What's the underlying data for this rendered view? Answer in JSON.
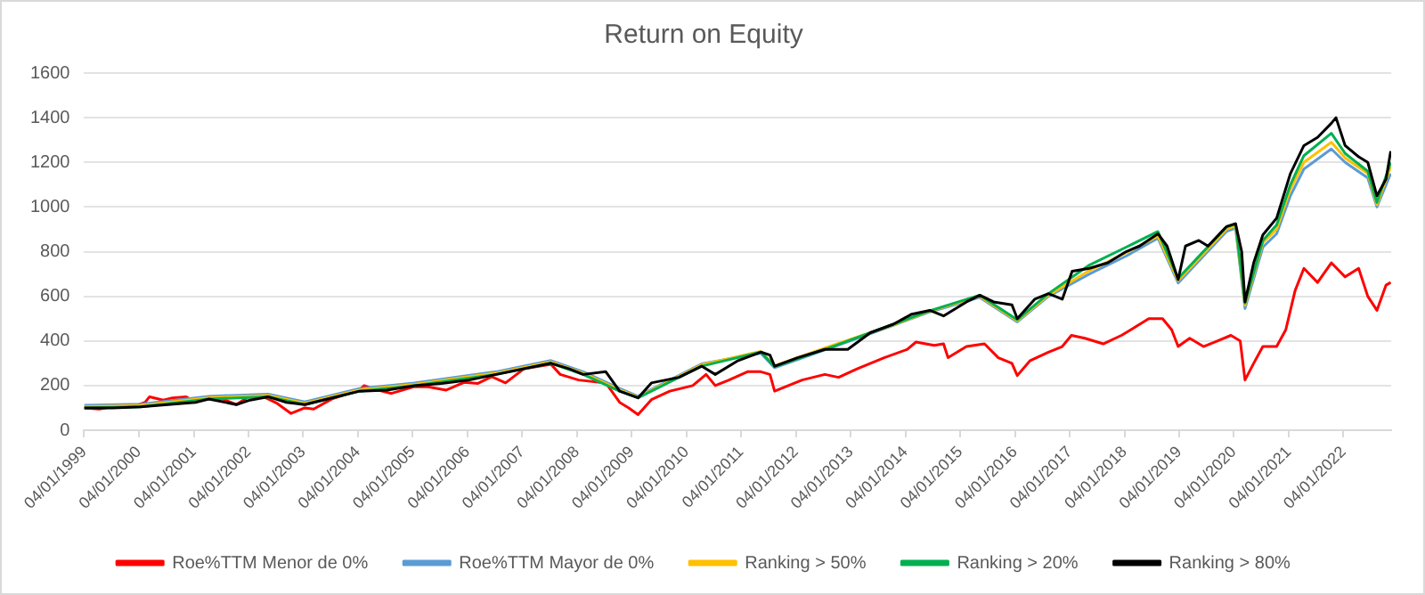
{
  "chart_data": {
    "type": "line",
    "title": "Return on Equity",
    "xlim": [
      "1999-01-04",
      "2022-11-18"
    ],
    "xticks": [
      {
        "value": "1999-01-04",
        "label": "04/01/1999"
      },
      {
        "value": "2000-01-04",
        "label": "04/01/2000"
      },
      {
        "value": "2001-01-04",
        "label": "04/01/2001"
      },
      {
        "value": "2002-01-04",
        "label": "04/01/2002"
      },
      {
        "value": "2003-01-04",
        "label": "04/01/2003"
      },
      {
        "value": "2004-01-04",
        "label": "04/01/2004"
      },
      {
        "value": "2005-01-04",
        "label": "04/01/2005"
      },
      {
        "value": "2006-01-04",
        "label": "04/01/2006"
      },
      {
        "value": "2007-01-04",
        "label": "04/01/2007"
      },
      {
        "value": "2008-01-04",
        "label": "04/01/2008"
      },
      {
        "value": "2009-01-04",
        "label": "04/01/2009"
      },
      {
        "value": "2010-01-04",
        "label": "04/01/2010"
      },
      {
        "value": "2011-01-04",
        "label": "04/01/2011"
      },
      {
        "value": "2012-01-04",
        "label": "04/01/2012"
      },
      {
        "value": "2013-01-04",
        "label": "04/01/2013"
      },
      {
        "value": "2014-01-04",
        "label": "04/01/2014"
      },
      {
        "value": "2015-01-04",
        "label": "04/01/2015"
      },
      {
        "value": "2016-01-04",
        "label": "04/01/2016"
      },
      {
        "value": "2017-01-04",
        "label": "04/01/2017"
      },
      {
        "value": "2018-01-04",
        "label": "04/01/2018"
      },
      {
        "value": "2019-01-04",
        "label": "04/01/2019"
      },
      {
        "value": "2020-01-04",
        "label": "04/01/2020"
      },
      {
        "value": "2021-01-04",
        "label": "04/01/2021"
      },
      {
        "value": "2022-01-04",
        "label": "04/01/2022"
      }
    ],
    "ylim": [
      0,
      1600
    ],
    "yticks": [
      0,
      200,
      400,
      600,
      800,
      1000,
      1200,
      1400,
      1600
    ],
    "grid": "y",
    "legend": "bottom",
    "marker": "none",
    "line_style": "solid",
    "series": [
      {
        "name": "Roe%TTM Menor de 0%",
        "color": "#ff0000",
        "x": [
          "1999-01-04",
          "1999-04-15",
          "1999-08-15",
          "1999-12-15",
          "2000-02-15",
          "2000-03-15",
          "2000-06-15",
          "2000-08-15",
          "2000-11-15",
          "2001-01-15",
          "2001-04-15",
          "2001-07-15",
          "2001-10-15",
          "2002-01-15",
          "2002-04-15",
          "2002-07-15",
          "2002-10-15",
          "2003-01-15",
          "2003-03-15",
          "2003-07-15",
          "2004-01-15",
          "2004-02-15",
          "2004-04-15",
          "2004-08-15",
          "2005-01-15",
          "2005-04-15",
          "2005-08-15",
          "2005-12-15",
          "2006-03-15",
          "2006-06-15",
          "2006-09-15",
          "2007-01-15",
          "2007-07-15",
          "2007-09-15",
          "2008-01-15",
          "2008-07-15",
          "2008-10-15",
          "2008-12-15",
          "2009-02-15",
          "2009-05-15",
          "2009-09-15",
          "2010-02-15",
          "2010-05-15",
          "2010-07-15",
          "2010-10-15",
          "2011-02-15",
          "2011-05-15",
          "2011-07-15",
          "2011-08-15",
          "2011-11-15",
          "2012-02-15",
          "2012-07-15",
          "2012-10-15",
          "2013-02-15",
          "2013-08-15",
          "2014-01-15",
          "2014-03-15",
          "2014-07-15",
          "2014-09-15",
          "2014-10-15",
          "2015-02-15",
          "2015-06-15",
          "2015-09-15",
          "2015-12-15",
          "2016-01-20",
          "2016-04-15",
          "2016-08-15",
          "2016-11-15",
          "2017-01-15",
          "2017-04-15",
          "2017-08-15",
          "2017-12-15",
          "2018-02-15",
          "2018-06-15",
          "2018-09-15",
          "2018-11-15",
          "2018-12-28",
          "2019-03-15",
          "2019-06-15",
          "2019-09-15",
          "2019-12-15",
          "2020-02-15",
          "2020-03-18",
          "2020-05-15",
          "2020-07-15",
          "2020-10-15",
          "2020-12-15",
          "2021-02-15",
          "2021-04-15",
          "2021-07-15",
          "2021-10-15",
          "2022-01-15",
          "2022-04-15",
          "2022-06-15",
          "2022-08-15",
          "2022-10-15",
          "2022-11-15"
        ],
        "values": [
          100,
          95,
          110,
          110,
          125,
          150,
          135,
          145,
          150,
          125,
          150,
          140,
          115,
          155,
          150,
          120,
          75,
          100,
          95,
          140,
          180,
          200,
          185,
          165,
          195,
          195,
          180,
          215,
          210,
          240,
          212,
          275,
          295,
          250,
          225,
          212,
          125,
          100,
          70,
          137,
          175,
          200,
          250,
          200,
          225,
          262,
          262,
          250,
          175,
          200,
          225,
          250,
          237,
          275,
          325,
          362,
          395,
          380,
          387,
          325,
          375,
          387,
          325,
          300,
          245,
          312,
          350,
          375,
          425,
          412,
          387,
          425,
          450,
          500,
          500,
          450,
          375,
          412,
          375,
          400,
          425,
          400,
          225,
          300,
          375,
          375,
          450,
          625,
          725,
          662,
          750,
          687,
          725,
          600,
          537,
          650,
          662
        ]
      },
      {
        "name": "Roe%TTM Mayor de 0%",
        "color": "#5b9bd5",
        "x": [
          "1999-01-04",
          "2000-01-15",
          "2001-04-15",
          "2002-05-15",
          "2003-01-15",
          "2004-01-15",
          "2005-01-15",
          "2006-07-15",
          "2007-07-15",
          "2008-02-15",
          "2008-10-15",
          "2009-02-15",
          "2010-04-15",
          "2011-05-15",
          "2011-08-15",
          "2012-07-15",
          "2013-10-15",
          "2014-06-15",
          "2015-05-15",
          "2016-01-20",
          "2016-08-15",
          "2017-05-15",
          "2018-01-15",
          "2018-08-15",
          "2018-12-28",
          "2019-11-15",
          "2020-01-15",
          "2020-03-18",
          "2020-07-15",
          "2020-10-15",
          "2021-01-15",
          "2021-04-15",
          "2021-10-15",
          "2022-01-15",
          "2022-06-15",
          "2022-08-15",
          "2022-11-15"
        ],
        "values": [
          112,
          117,
          152,
          162,
          127,
          187,
          212,
          262,
          312,
          262,
          187,
          152,
          297,
          345,
          280,
          360,
          470,
          530,
          595,
          485,
          600,
          700,
          780,
          860,
          660,
          890,
          905,
          545,
          820,
          880,
          1050,
          1170,
          1260,
          1200,
          1130,
          1000,
          1150
        ]
      },
      {
        "name": "Ranking > 50%",
        "color": "#ffc000",
        "x": [
          "1999-01-04",
          "2000-01-15",
          "2001-04-15",
          "2002-05-15",
          "2003-01-15",
          "2004-01-15",
          "2005-01-15",
          "2006-07-15",
          "2007-07-15",
          "2008-02-15",
          "2008-10-15",
          "2009-02-15",
          "2010-04-15",
          "2011-05-15",
          "2011-08-15",
          "2012-07-15",
          "2013-10-15",
          "2014-06-15",
          "2015-05-15",
          "2016-01-20",
          "2016-08-15",
          "2017-05-15",
          "2018-01-15",
          "2018-08-15",
          "2018-12-28",
          "2019-11-15",
          "2020-01-15",
          "2020-03-18",
          "2020-07-15",
          "2020-10-15",
          "2021-01-15",
          "2021-04-15",
          "2021-10-15",
          "2022-01-15",
          "2022-06-15",
          "2022-08-15",
          "2022-11-15"
        ],
        "values": [
          106,
          111,
          146,
          156,
          121,
          181,
          206,
          256,
          306,
          256,
          181,
          148,
          293,
          353,
          289,
          368,
          472,
          533,
          600,
          490,
          605,
          715,
          795,
          870,
          670,
          900,
          915,
          560,
          840,
          900,
          1080,
          1200,
          1290,
          1220,
          1150,
          1010,
          1180
        ]
      },
      {
        "name": "Ranking > 20%",
        "color": "#00b050",
        "x": [
          "1999-01-04",
          "2000-01-15",
          "2001-04-15",
          "2002-05-15",
          "2003-01-15",
          "2004-01-15",
          "2005-01-15",
          "2006-07-15",
          "2007-07-15",
          "2008-02-15",
          "2008-10-15",
          "2009-02-15",
          "2010-04-15",
          "2011-05-15",
          "2011-08-15",
          "2012-07-15",
          "2013-10-15",
          "2014-06-15",
          "2015-05-15",
          "2016-01-20",
          "2016-08-15",
          "2017-05-15",
          "2018-01-15",
          "2018-08-15",
          "2018-12-28",
          "2019-11-15",
          "2020-01-15",
          "2020-03-18",
          "2020-07-15",
          "2020-10-15",
          "2021-01-15",
          "2021-04-15",
          "2021-10-15",
          "2022-01-15",
          "2022-06-15",
          "2022-08-15",
          "2022-11-15"
        ],
        "values": [
          100,
          105,
          140,
          150,
          115,
          175,
          200,
          250,
          300,
          250,
          175,
          145,
          287,
          350,
          285,
          362,
          475,
          535,
          605,
          495,
          612,
          740,
          820,
          890,
          680,
          910,
          925,
          570,
          850,
          920,
          1100,
          1230,
          1330,
          1240,
          1160,
          1020,
          1200
        ]
      },
      {
        "name": "Ranking > 80%",
        "color": "#000000",
        "x": [
          "1999-01-04",
          "1999-07-15",
          "2000-01-15",
          "2000-07-15",
          "2001-01-15",
          "2001-04-15",
          "2001-10-15",
          "2002-01-15",
          "2002-05-15",
          "2002-09-15",
          "2003-01-15",
          "2003-04-15",
          "2003-08-15",
          "2004-01-15",
          "2004-07-15",
          "2005-01-15",
          "2005-07-15",
          "2006-01-15",
          "2006-07-15",
          "2007-07-15",
          "2007-11-15",
          "2008-02-15",
          "2008-07-15",
          "2008-10-15",
          "2009-02-15",
          "2009-05-15",
          "2009-11-15",
          "2010-04-15",
          "2010-07-15",
          "2010-12-15",
          "2011-05-15",
          "2011-07-15",
          "2011-08-15",
          "2012-01-15",
          "2012-07-15",
          "2012-12-15",
          "2013-05-15",
          "2013-10-15",
          "2014-02-15",
          "2014-06-15",
          "2014-09-15",
          "2015-02-15",
          "2015-05-15",
          "2015-08-15",
          "2015-12-15",
          "2016-01-20",
          "2016-05-15",
          "2016-08-15",
          "2016-11-15",
          "2017-01-20",
          "2017-05-15",
          "2017-09-15",
          "2018-01-15",
          "2018-04-15",
          "2018-08-15",
          "2018-10-15",
          "2018-12-28",
          "2019-02-15",
          "2019-05-15",
          "2019-07-15",
          "2019-11-15",
          "2020-01-15",
          "2020-02-25",
          "2020-03-18",
          "2020-05-15",
          "2020-07-15",
          "2020-10-15",
          "2021-01-15",
          "2021-04-15",
          "2021-07-15",
          "2021-10-15",
          "2021-11-15",
          "2022-01-15",
          "2022-04-15",
          "2022-06-15",
          "2022-08-15",
          "2022-10-15",
          "2022-11-15"
        ],
        "values": [
          100,
          100,
          105,
          115,
          125,
          140,
          115,
          135,
          150,
          125,
          115,
          130,
          150,
          175,
          180,
          200,
          210,
          225,
          250,
          300,
          275,
          250,
          262,
          175,
          145,
          212,
          237,
          287,
          250,
          312,
          350,
          337,
          287,
          325,
          362,
          362,
          437,
          475,
          520,
          537,
          512,
          575,
          605,
          575,
          562,
          500,
          587,
          612,
          587,
          712,
          725,
          750,
          800,
          825,
          880,
          825,
          675,
          825,
          850,
          825,
          912,
          925,
          800,
          575,
          750,
          875,
          950,
          1150,
          1275,
          1312,
          1375,
          1400,
          1275,
          1225,
          1200,
          1050,
          1125,
          1250
        ]
      }
    ]
  }
}
